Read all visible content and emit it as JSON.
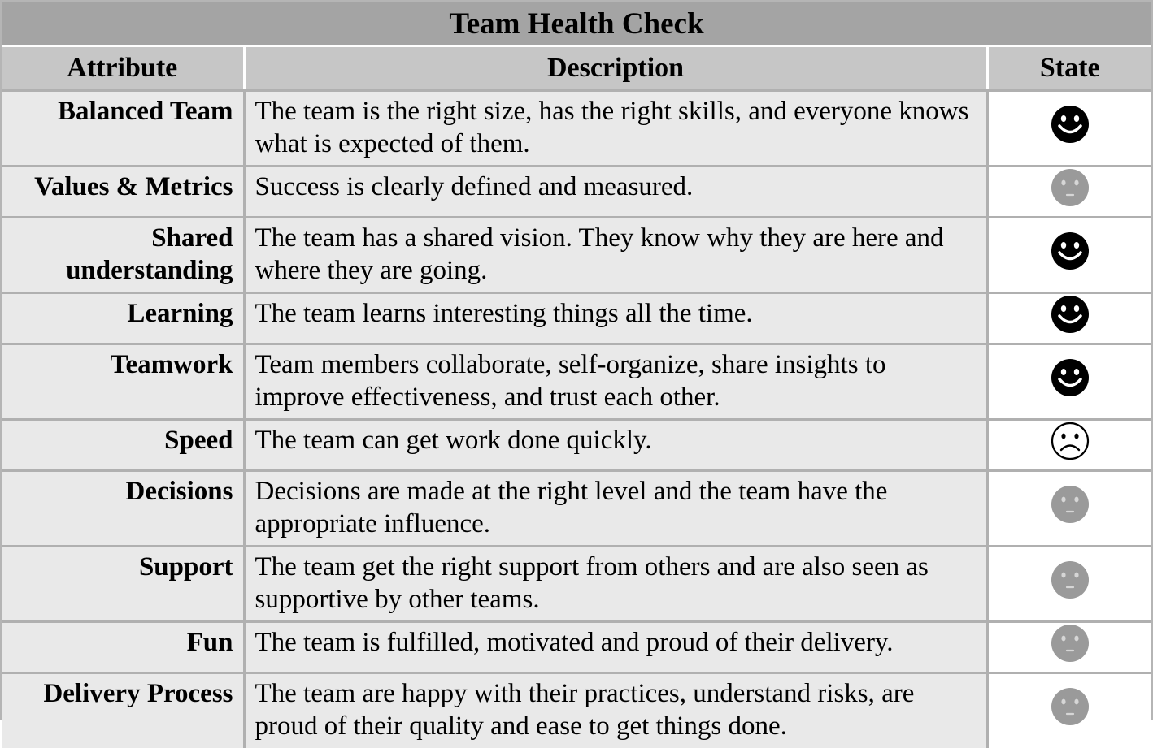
{
  "title": "Team Health Check",
  "headers": {
    "attribute": "Attribute",
    "description": "Description",
    "state": "State"
  },
  "state_colors": {
    "happy": "#000000",
    "neutral": "#9a9a9a",
    "sad": "#ffffff"
  },
  "rows": [
    {
      "attribute": "Balanced Team",
      "description": "The team is the right size, has the right skills, and everyone knows what is expected of them.",
      "state": "happy-face-icon"
    },
    {
      "attribute": "Values & Metrics",
      "description": "Success is clearly defined and measured.",
      "state": "neutral-face-icon"
    },
    {
      "attribute": "Shared understanding",
      "description": "The team has a shared vision. They know why they are here and where they are going.",
      "state": "happy-face-icon"
    },
    {
      "attribute": "Learning",
      "description": "The team learns interesting things all the time.",
      "state": "happy-face-icon"
    },
    {
      "attribute": "Teamwork",
      "description": "Team members collaborate, self-organize, share insights to improve effectiveness, and trust each other.",
      "state": "happy-face-icon"
    },
    {
      "attribute": "Speed",
      "description": "The team can get work done quickly.",
      "state": "sad-face-icon"
    },
    {
      "attribute": "Decisions",
      "description": "Decisions are made at the right level and the team have the appropriate influence.",
      "state": "neutral-face-icon"
    },
    {
      "attribute": "Support",
      "description": "The team get the right support from others and are also seen as supportive by other teams.",
      "state": "neutral-face-icon"
    },
    {
      "attribute": "Fun",
      "description": "The team is fulfilled, motivated and proud of their delivery.",
      "state": "neutral-face-icon"
    },
    {
      "attribute": "Delivery Process",
      "description": "The team are happy with their practices, understand risks, are proud of their quality and ease to get things done.",
      "state": "neutral-face-icon"
    }
  ]
}
